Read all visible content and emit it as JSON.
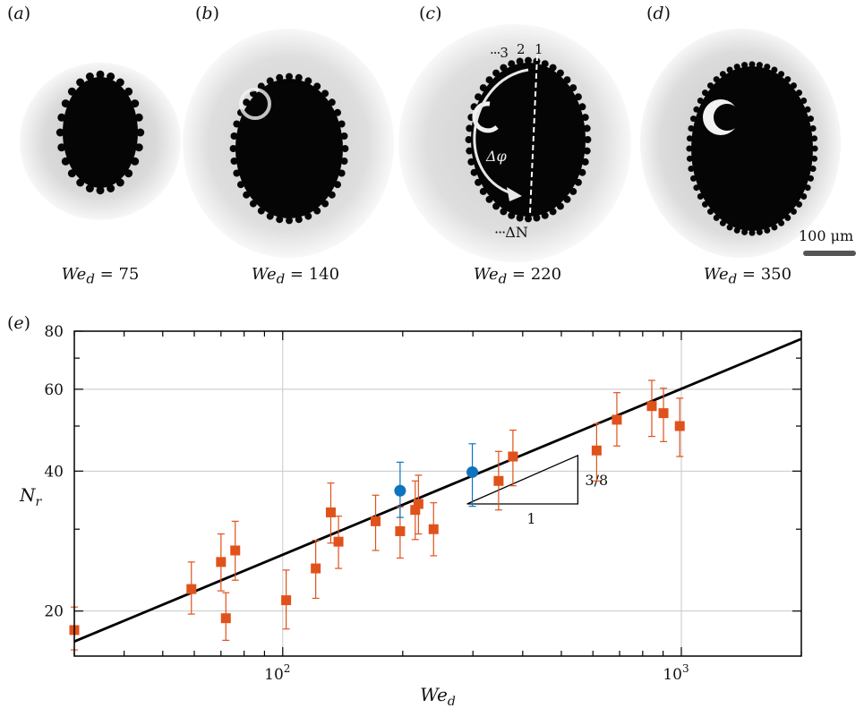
{
  "panels": [
    {
      "label": "a",
      "we_value": "75"
    },
    {
      "label": "b",
      "we_value": "140"
    },
    {
      "label": "c",
      "we_value": "220"
    },
    {
      "label": "d",
      "we_value": "350"
    }
  ],
  "we_symbol": "We",
  "we_subscript": "d",
  "panel_c_annotations": {
    "ring_labels": [
      "3",
      "2",
      "1"
    ],
    "angle_label": "Δφ",
    "count_label": "ΔN"
  },
  "scalebar_label": "100 μm",
  "panel_e_label": "e",
  "chart_data": {
    "type": "scatter",
    "xscale": "log",
    "yscale": "log",
    "xlim": [
      30,
      2000
    ],
    "ylim": [
      16,
      80
    ],
    "xlabel_main": "We",
    "xlabel_sub": "d",
    "ylabel_main": "N",
    "ylabel_sub": "r",
    "x_tick_labels": [
      {
        "value": 100,
        "base": "10",
        "exp": "2"
      },
      {
        "value": 1000,
        "base": "10",
        "exp": "3"
      }
    ],
    "y_tick_labels": [
      20,
      40,
      60,
      80
    ],
    "grid": true,
    "slope_annotation": {
      "rise_label": "3/8",
      "run_label": "1"
    },
    "fit_line": {
      "slope": 0.375,
      "points": [
        [
          30,
          17.2
        ],
        [
          2000,
          77
        ]
      ]
    },
    "colors": {
      "orange": "#e0521b",
      "blue": "#0f73be",
      "line": "#000000"
    },
    "series": [
      {
        "marker": "square",
        "color": "#e0521b",
        "points": [
          {
            "x": 30,
            "y": 18.2,
            "lo": 16.5,
            "hi": 20.4
          },
          {
            "x": 59,
            "y": 22.3,
            "lo": 19.7,
            "hi": 25.5
          },
          {
            "x": 70,
            "y": 25.5,
            "lo": 22.1,
            "hi": 29.3
          },
          {
            "x": 72,
            "y": 19.3,
            "lo": 17.3,
            "hi": 21.9
          },
          {
            "x": 76,
            "y": 27.0,
            "lo": 23.3,
            "hi": 31.2
          },
          {
            "x": 102,
            "y": 21.1,
            "lo": 18.3,
            "hi": 24.5
          },
          {
            "x": 121,
            "y": 24.7,
            "lo": 21.3,
            "hi": 28.4
          },
          {
            "x": 132,
            "y": 32.6,
            "lo": 28.0,
            "hi": 37.7
          },
          {
            "x": 138,
            "y": 28.2,
            "lo": 24.7,
            "hi": 32.0
          },
          {
            "x": 171,
            "y": 31.2,
            "lo": 27.0,
            "hi": 35.5
          },
          {
            "x": 197,
            "y": 29.7,
            "lo": 26.0,
            "hi": 33.5
          },
          {
            "x": 215,
            "y": 33.0,
            "lo": 28.5,
            "hi": 38.1
          },
          {
            "x": 219,
            "y": 34.0,
            "lo": 29.3,
            "hi": 39.2
          },
          {
            "x": 239,
            "y": 30.0,
            "lo": 26.3,
            "hi": 34.2
          },
          {
            "x": 348,
            "y": 38.1,
            "lo": 33.0,
            "hi": 44.1
          },
          {
            "x": 378,
            "y": 43.0,
            "lo": 37.2,
            "hi": 49.0
          },
          {
            "x": 613,
            "y": 44.3,
            "lo": 38.1,
            "hi": 50.6
          },
          {
            "x": 689,
            "y": 51.6,
            "lo": 45.3,
            "hi": 59.0
          },
          {
            "x": 843,
            "y": 55.2,
            "lo": 47.5,
            "hi": 62.7
          },
          {
            "x": 902,
            "y": 53.3,
            "lo": 46.3,
            "hi": 60.3
          },
          {
            "x": 991,
            "y": 50.0,
            "lo": 43.0,
            "hi": 57.4
          }
        ]
      },
      {
        "marker": "circle",
        "color": "#0f73be",
        "points": [
          {
            "x": 197,
            "y": 36.3,
            "lo": 31.8,
            "hi": 41.8
          },
          {
            "x": 299,
            "y": 39.8,
            "lo": 33.6,
            "hi": 45.8
          }
        ]
      }
    ]
  }
}
